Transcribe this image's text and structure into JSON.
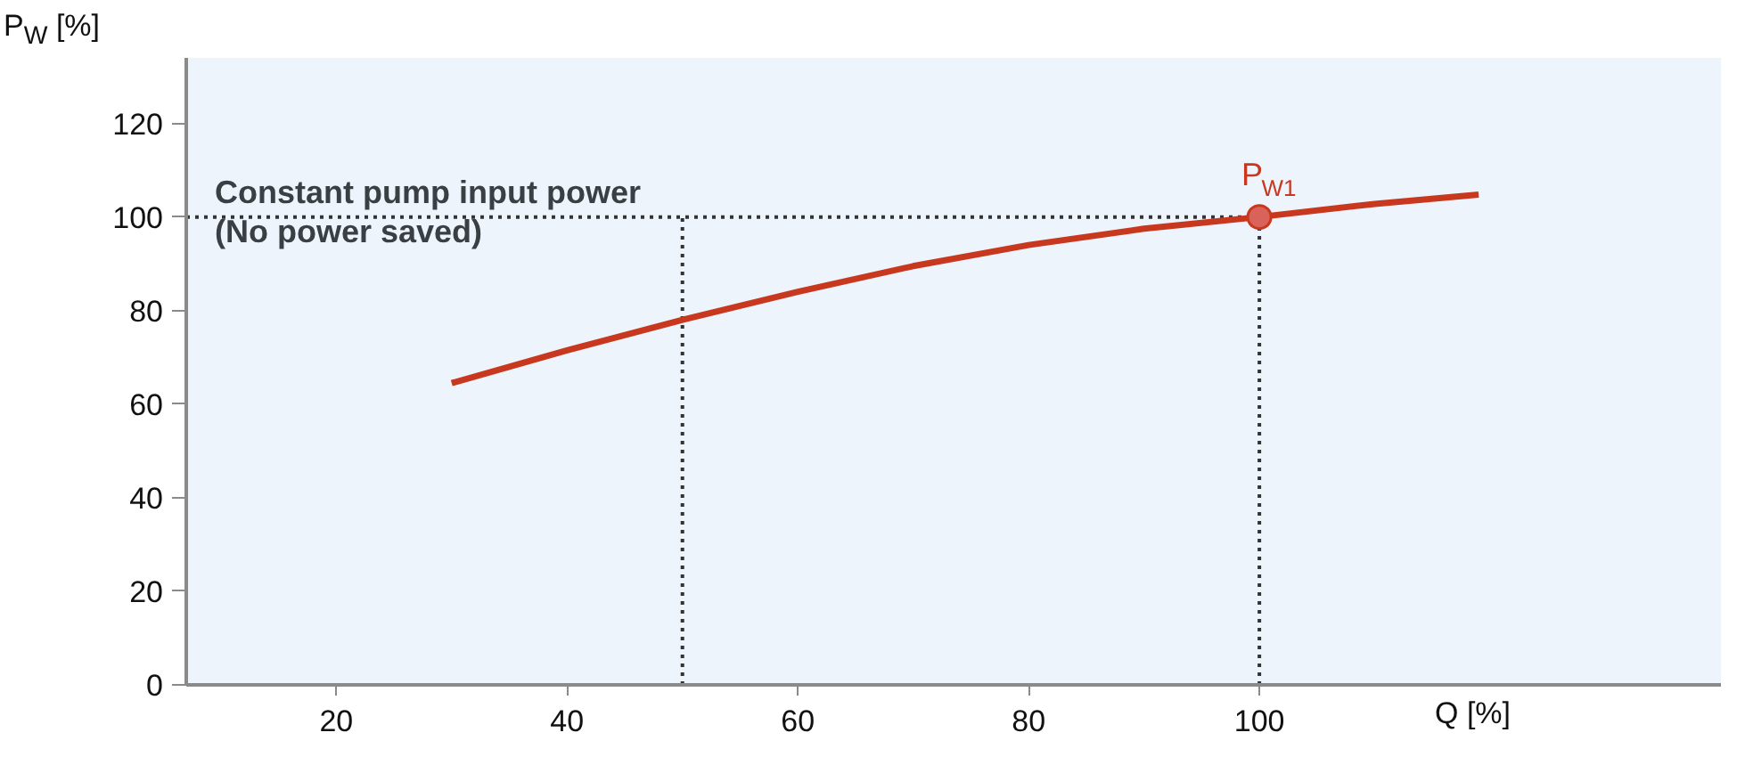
{
  "chart_data": {
    "type": "line",
    "xlabel": "Q [%]",
    "ylabel": "P$_{W}$ [%]",
    "x": [
      30,
      40,
      50,
      60,
      70,
      80,
      90,
      100,
      110,
      119
    ],
    "series": [
      {
        "color": "#c8381f",
        "values": [
          64.5,
          71.5,
          78,
          84,
          89.5,
          94,
          97.5,
          100,
          102.8,
          104.8
        ]
      },
      {
        "type": "scatter",
        "marker": "circle",
        "color": "#d9635a",
        "x": [
          100
        ],
        "values": [
          100
        ]
      }
    ],
    "xlim": [
      7,
      140
    ],
    "ylim": [
      0,
      134
    ],
    "xticks": [
      20,
      40,
      60,
      80,
      100
    ],
    "yticks": [
      0,
      20,
      40,
      60,
      80,
      100,
      120
    ],
    "grid": false,
    "marker": "none",
    "line_style": "solid",
    "ref_lines": [
      {
        "axis": "y",
        "value": 100,
        "label": "Constant pump input power\n(No power saved)",
        "color": "#333333",
        "line_style": "dotted"
      },
      {
        "axis": "x",
        "value": 50,
        "color": "#333333",
        "line_style": "dotted"
      },
      {
        "axis": "x",
        "value": 100,
        "color": "#333333",
        "line_style": "dotted"
      }
    ],
    "annotations": [
      {
        "text": "P$_{W1}$",
        "x": 100,
        "y": 100
      }
    ]
  }
}
